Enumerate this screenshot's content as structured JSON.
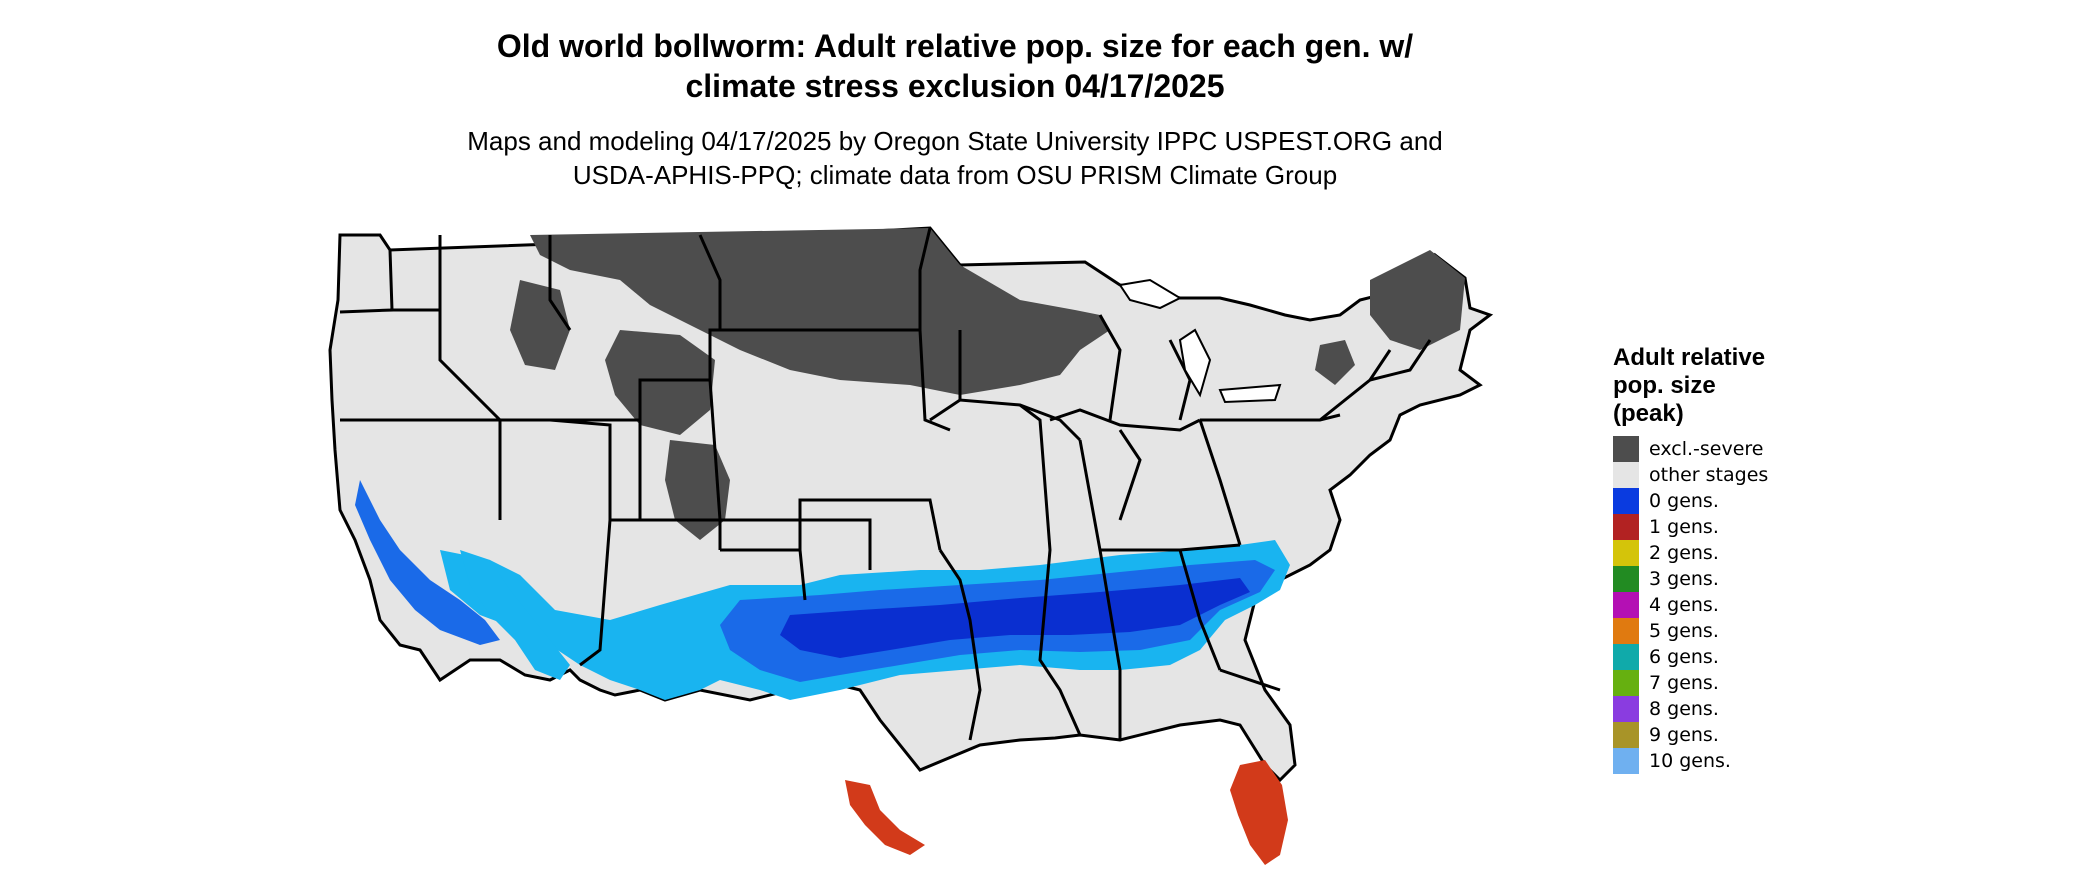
{
  "title": {
    "line1": "Old world bollworm: Adult relative pop. size for each gen. w/",
    "line2": "climate stress exclusion 04/17/2025"
  },
  "subtitle": {
    "line1": "Maps and modeling 04/17/2025 by Oregon State University IPPC USPEST.ORG and",
    "line2": "USDA-APHIS-PPQ; climate data from OSU PRISM Climate Group"
  },
  "legend": {
    "title_line1": "Adult relative",
    "title_line2": "pop. size",
    "title_line3": "(peak)",
    "items": [
      {
        "label": "excl.-severe",
        "color": "#4d4d4d"
      },
      {
        "label": "other stages",
        "color": "#e5e5e5"
      },
      {
        "label": "0 gens.",
        "color": "#0a3be0"
      },
      {
        "label": "1 gens.",
        "color": "#b22222"
      },
      {
        "label": "2 gens.",
        "color": "#d4c40a"
      },
      {
        "label": "3 gens.",
        "color": "#228b22"
      },
      {
        "label": "4 gens.",
        "color": "#b410b4"
      },
      {
        "label": "5 gens.",
        "color": "#e07a10"
      },
      {
        "label": "6 gens.",
        "color": "#10aaaa"
      },
      {
        "label": "7 gens.",
        "color": "#66b010"
      },
      {
        "label": "8 gens.",
        "color": "#8a3ce0"
      },
      {
        "label": "9 gens.",
        "color": "#a89428"
      },
      {
        "label": "10 gens.",
        "color": "#6fb0f0"
      }
    ]
  },
  "map_colors": {
    "land": "#e5e5e5",
    "excluded": "#4d4d4d",
    "zero_gen_dark": "#0a2fd0",
    "zero_gen_mid": "#1a6ae8",
    "zero_gen_light": "#19b4f0",
    "one_gen_red": "#d23a1a",
    "border": "#000000"
  }
}
